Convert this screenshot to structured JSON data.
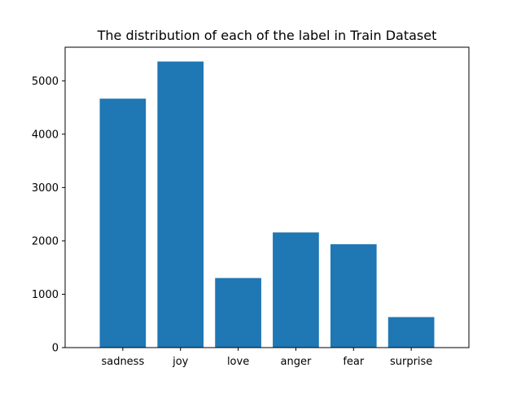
{
  "chart_data": {
    "type": "bar",
    "title": "The distribution of each of the label in Train Dataset",
    "xlabel": "",
    "ylabel": "",
    "categories": [
      "sadness",
      "joy",
      "love",
      "anger",
      "fear",
      "surprise"
    ],
    "values": [
      4666,
      5362,
      1304,
      2159,
      1937,
      572
    ],
    "ylim": [
      0,
      5630
    ],
    "yticks": [
      0,
      1000,
      2000,
      3000,
      4000,
      5000
    ],
    "grid": false,
    "bar_color": "#1f77b4"
  }
}
